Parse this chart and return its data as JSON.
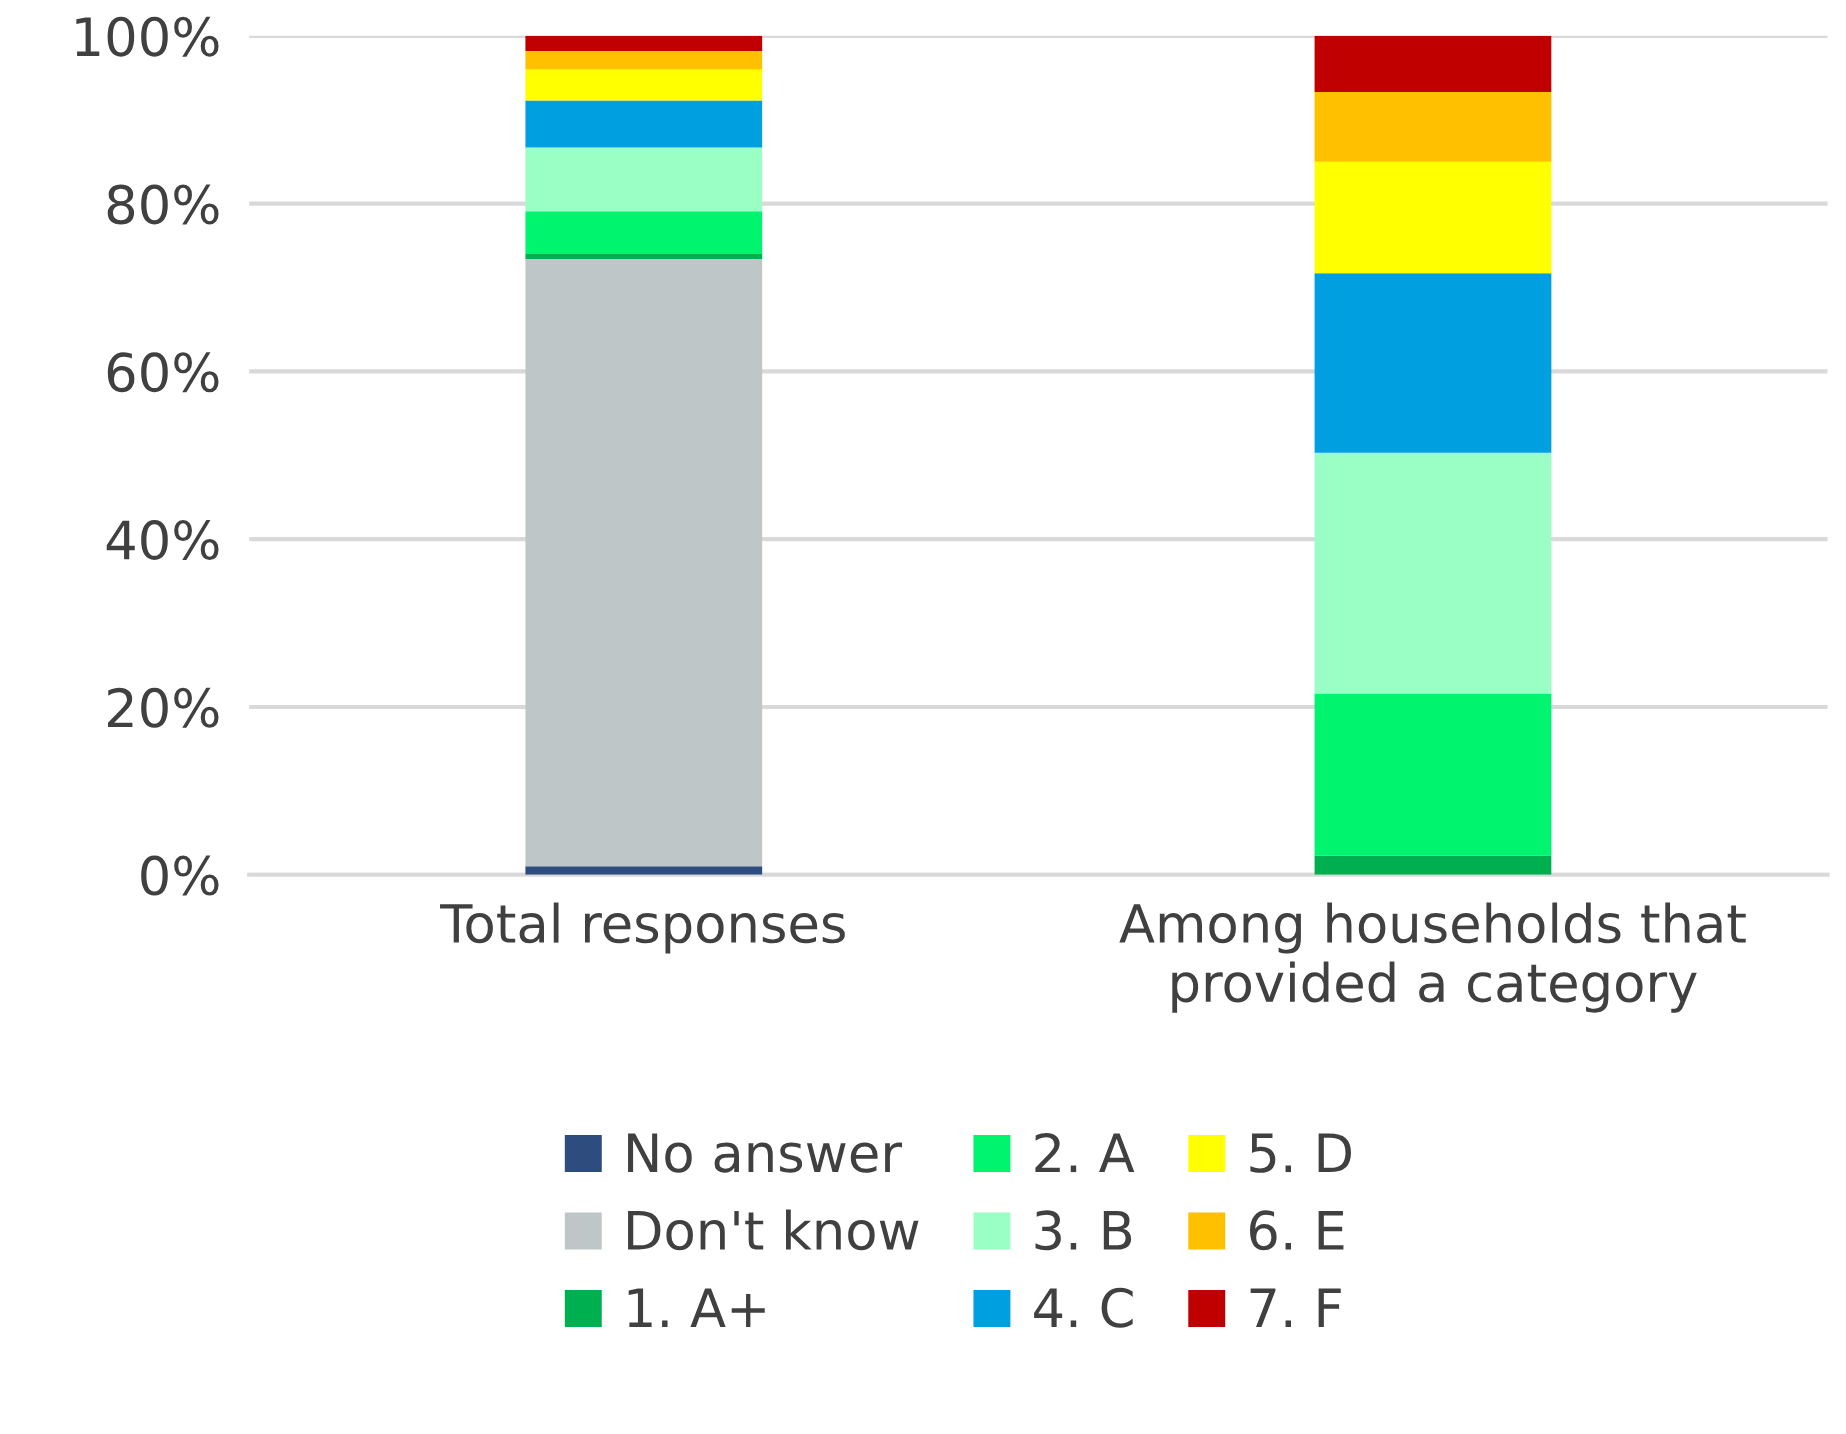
{
  "chart_data": {
    "type": "bar",
    "stacked": true,
    "categories": [
      "Total responses",
      "Among households that provided a category"
    ],
    "series": [
      {
        "name": "No answer",
        "color": "#2e4d7f",
        "values": [
          1.0,
          0
        ]
      },
      {
        "name": "Don't know",
        "color": "#bec6c8",
        "values": [
          72.4,
          0
        ]
      },
      {
        "name": "1. A+",
        "color": "#00b050",
        "values": [
          0.6,
          2.3
        ]
      },
      {
        "name": "2. A",
        "color": "#00f46e",
        "values": [
          5.1,
          19.3
        ]
      },
      {
        "name": "3. B",
        "color": "#99ffc5",
        "values": [
          7.6,
          28.7
        ]
      },
      {
        "name": "4. C",
        "color": "#009fdf",
        "values": [
          5.6,
          21.4
        ]
      },
      {
        "name": "5. D",
        "color": "#ffff00",
        "values": [
          3.7,
          13.3
        ]
      },
      {
        "name": "6. E",
        "color": "#ffc000",
        "values": [
          2.2,
          8.3
        ]
      },
      {
        "name": "7. F",
        "color": "#c00000",
        "values": [
          1.8,
          6.7
        ]
      }
    ],
    "ylim": [
      0,
      100
    ],
    "yticks": [
      {
        "value": 0,
        "label": "0%"
      },
      {
        "value": 20,
        "label": "20%"
      },
      {
        "value": 40,
        "label": "40%"
      },
      {
        "value": 60,
        "label": "60%"
      },
      {
        "value": 80,
        "label": "80%"
      },
      {
        "value": 100,
        "label": "100%"
      }
    ],
    "grid": "y",
    "legend": "bottom"
  }
}
